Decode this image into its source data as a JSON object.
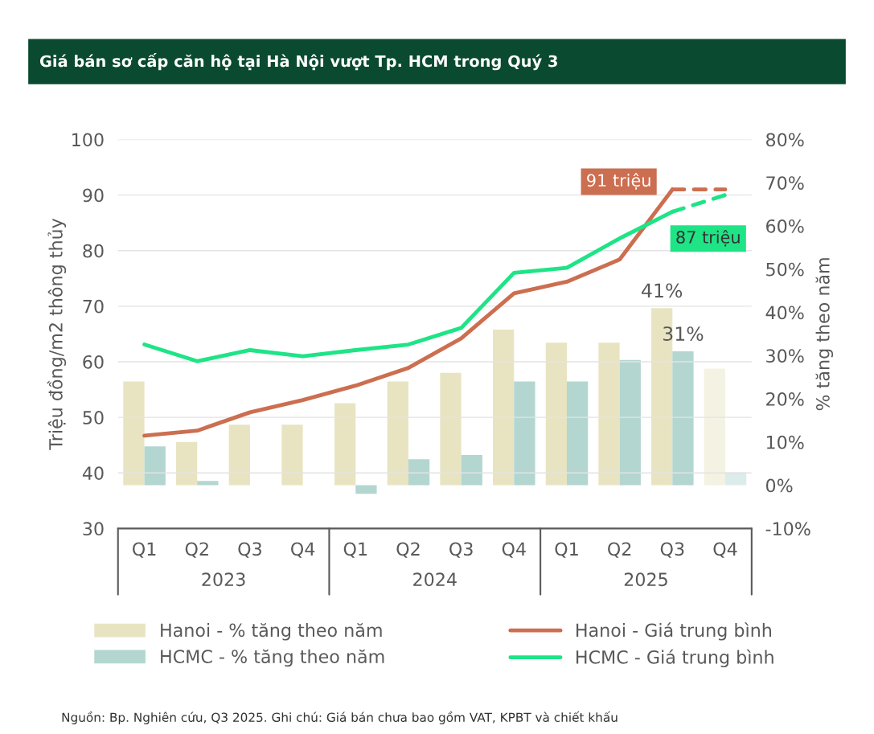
{
  "chart_data": {
    "type": "bar",
    "title": "Giá bán sơ cấp căn hộ tại Hà Nội vượt Tp. HCM trong Quý 3",
    "categories": [
      "Q1",
      "Q2",
      "Q3",
      "Q4",
      "Q1",
      "Q2",
      "Q3",
      "Q4",
      "Q1",
      "Q2",
      "Q3",
      "Q4"
    ],
    "ylabel": "Triệu đồng/m2 thông thủy",
    "y2label": "% tăng theo năm",
    "ylim": [
      30,
      100
    ],
    "yticks": [
      30,
      40,
      50,
      60,
      70,
      80,
      90,
      100
    ],
    "y2lim": [
      -10,
      80
    ],
    "y2ticks": [
      {
        "value": -10,
        "label": "-10%"
      },
      {
        "value": 0,
        "label": "0%"
      },
      {
        "value": 10,
        "label": "10%"
      },
      {
        "value": 20,
        "label": "20%"
      },
      {
        "value": 30,
        "label": "30%"
      },
      {
        "value": 40,
        "label": "40%"
      },
      {
        "value": 50,
        "label": "50%"
      },
      {
        "value": 60,
        "label": "60%"
      },
      {
        "value": 70,
        "label": "70%"
      },
      {
        "value": 80,
        "label": "80%"
      }
    ],
    "grid": "y",
    "legend": "bottom",
    "series": [
      {
        "name": "Hanoi - % tăng theo năm",
        "axis": "y2",
        "color": "#e8e4c2",
        "colors": [
          "#e8e4c2",
          "#e8e4c2",
          "#e8e4c2",
          "#e8e4c2",
          "#e8e4c2",
          "#e8e4c2",
          "#e8e4c2",
          "#e8e4c2",
          "#e8e4c2",
          "#e8e4c2",
          "#e8e4c2",
          "#f4f2e2"
        ],
        "values": [
          24,
          10,
          14,
          14,
          19,
          24,
          26,
          36,
          33,
          33,
          41,
          27
        ],
        "value_labels": [
          null,
          null,
          null,
          null,
          null,
          null,
          null,
          null,
          null,
          null,
          "41%",
          null
        ]
      },
      {
        "name": "HCMC - % tăng theo năm",
        "axis": "y2",
        "color": "#b3d6d0",
        "colors": [
          "#b3d6d0",
          "#b3d6d0",
          "#b3d6d0",
          "#b3d6d0",
          "#b3d6d0",
          "#b3d6d0",
          "#b3d6d0",
          "#b3d6d0",
          "#b3d6d0",
          "#b3d6d0",
          "#b3d6d0",
          "#dcecea"
        ],
        "values": [
          9,
          1,
          null,
          null,
          -2,
          6,
          7,
          24,
          24,
          29,
          31,
          3
        ],
        "value_labels": [
          null,
          null,
          null,
          null,
          null,
          null,
          null,
          null,
          null,
          null,
          "31%",
          null
        ]
      },
      {
        "name": "Hanoi - Giá trung bình",
        "type": "line",
        "color": "#cc6e50",
        "line_style": "solid",
        "values": [
          46.7,
          47.6,
          50.9,
          53.1,
          55.7,
          58.9,
          64.2,
          72.3,
          74.4,
          78.4,
          91,
          null
        ],
        "value_labels": [
          null,
          null,
          null,
          null,
          null,
          null,
          null,
          null,
          null,
          null,
          "91 triệu",
          null
        ]
      },
      {
        "name": "HCMC - Giá trung bình",
        "type": "line",
        "color": "#1ee486",
        "line_style": "solid",
        "values": [
          63.1,
          60.1,
          62.1,
          61.0,
          62.1,
          63.1,
          66.1,
          76.0,
          76.9,
          82.2,
          87,
          null
        ],
        "value_labels": [
          null,
          null,
          null,
          null,
          null,
          null,
          null,
          null,
          null,
          null,
          "87 triệu",
          null
        ]
      },
      {
        "type": "line",
        "color": "#cc6e50",
        "line_style": "dashed",
        "values": [
          null,
          null,
          null,
          null,
          null,
          null,
          null,
          null,
          null,
          null,
          91,
          91
        ]
      },
      {
        "type": "line",
        "color": "#1ee486",
        "line_style": "dashed",
        "values": [
          null,
          null,
          null,
          null,
          null,
          null,
          null,
          null,
          null,
          null,
          87,
          90
        ]
      }
    ],
    "annotations": [
      "2023",
      "2024",
      "2025",
      "Nguồn: Bp. Nghiên cứu, Q3 2025. Ghi chú: Giá bán chưa bao gồm VAT, KPBT và chiết khấu"
    ]
  }
}
